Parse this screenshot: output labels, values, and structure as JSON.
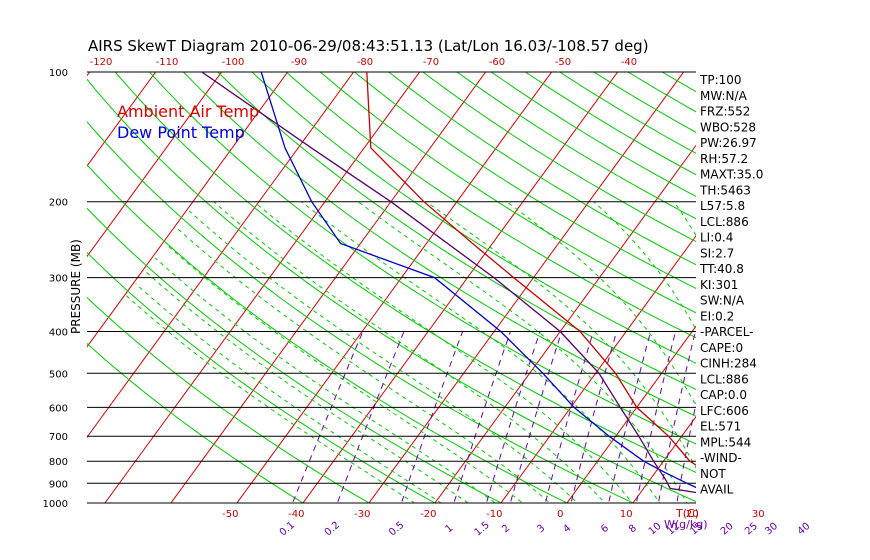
{
  "chart_data": {
    "type": "line",
    "title": "AIRS SkewT Diagram 2010-06-29/08:43:51.13 (Lat/Lon 16.03/-108.57 deg)",
    "ylabel": "PRESSURE (MB)",
    "xlabel": "T(C)",
    "mixing_ratio_label": "W(g/kg)",
    "pressure_ticks": [
      1000,
      900,
      800,
      700,
      600,
      500,
      400,
      300,
      200,
      100
    ],
    "pressure_tick_labels": [
      "1000",
      "900",
      "800",
      "700",
      "600",
      "500",
      "400",
      "300",
      "200",
      "100"
    ],
    "bottom_temp_ticks": [
      -50,
      -40,
      -30,
      -20,
      -10,
      0,
      10,
      20,
      30
    ],
    "bottom_temp_labels": [
      "-50",
      "-40",
      "-30",
      "-20",
      "-10",
      "0",
      "10",
      "20",
      "30"
    ],
    "top_temp_ticks": [
      -120,
      -110,
      -100,
      -90,
      -80,
      -70,
      -60,
      -50,
      -40
    ],
    "top_temp_labels": [
      "-120",
      "-110",
      "-100",
      "-90",
      "-80",
      "-70",
      "-60",
      "-50",
      "-40"
    ],
    "mixing_ratio_labels": [
      "0.1",
      "0.2",
      "0.5",
      "1",
      "1.5",
      "2",
      "3",
      "4",
      "6",
      "8",
      "10",
      "12",
      "15",
      "20",
      "25",
      "30",
      "40"
    ],
    "mixing_ratio_values": [
      0.1,
      0.2,
      0.5,
      1,
      1.5,
      2,
      3,
      4,
      6,
      8,
      10,
      12,
      15,
      20,
      25,
      30,
      40
    ],
    "legend": [
      {
        "label": "Ambient Air Temp",
        "color": "#dd0000"
      },
      {
        "label": "Dew Point Temp",
        "color": "#0000dd"
      }
    ],
    "series": [
      {
        "name": "Ambient Air Temp",
        "color": "#cc0000",
        "points": [
          {
            "p": 1000,
            "t": 29.5
          },
          {
            "p": 950,
            "t": 26.0
          },
          {
            "p": 900,
            "t": 21.5
          },
          {
            "p": 850,
            "t": 18.0
          },
          {
            "p": 800,
            "t": 14.0
          },
          {
            "p": 700,
            "t": 8.0
          },
          {
            "p": 600,
            "t": 0.0
          },
          {
            "p": 500,
            "t": -7.0
          },
          {
            "p": 400,
            "t": -17.0
          },
          {
            "p": 300,
            "t": -33.0
          },
          {
            "p": 250,
            "t": -43.0
          },
          {
            "p": 200,
            "t": -55.0
          },
          {
            "p": 150,
            "t": -69.0
          },
          {
            "p": 100,
            "t": -78.0
          }
        ]
      },
      {
        "name": "Dew Point Temp",
        "color": "#0000cc",
        "points": [
          {
            "p": 1000,
            "t": 22.0
          },
          {
            "p": 950,
            "t": 20.5
          },
          {
            "p": 900,
            "t": 16.0
          },
          {
            "p": 850,
            "t": 11.5
          },
          {
            "p": 800,
            "t": 7.0
          },
          {
            "p": 700,
            "t": -1.0
          },
          {
            "p": 600,
            "t": -9.5
          },
          {
            "p": 500,
            "t": -18.0
          },
          {
            "p": 400,
            "t": -29.0
          },
          {
            "p": 300,
            "t": -45.0
          },
          {
            "p": 250,
            "t": -63.0
          },
          {
            "p": 200,
            "t": -72.0
          },
          {
            "p": 150,
            "t": -82.0
          },
          {
            "p": 100,
            "t": -94.0
          }
        ]
      },
      {
        "name": "",
        "color": "#55006a",
        "points": [
          {
            "p": 1000,
            "t": 29.5
          },
          {
            "p": 925,
            "t": 14.0
          },
          {
            "p": 886,
            "t": 12.5
          },
          {
            "p": 800,
            "t": 8.5
          },
          {
            "p": 700,
            "t": 3.5
          },
          {
            "p": 600,
            "t": -2.5
          },
          {
            "p": 500,
            "t": -9.5
          },
          {
            "p": 400,
            "t": -20.0
          },
          {
            "p": 300,
            "t": -36.0
          },
          {
            "p": 200,
            "t": -60.0
          },
          {
            "p": 150,
            "t": -78.0
          },
          {
            "p": 100,
            "t": -103.0
          }
        ]
      }
    ],
    "ylim": [
      1000,
      100
    ],
    "xlim": [
      -52,
      38
    ]
  },
  "indices": [
    "TP:100",
    "MW:N/A",
    "FRZ:552",
    "WBO:528",
    "PW:26.97",
    "RH:57.2",
    "MAXT:35.0",
    "TH:5463",
    "L57:5.8",
    "LCL:886",
    "LI:0.4",
    "SI:2.7",
    "TT:40.8",
    "KI:301",
    "SW:N/A",
    "EI:0.2",
    "-PARCEL-",
    "CAPE:0",
    "CINH:284",
    "LCL:886",
    "CAP:0.0",
    "LFC:606",
    "EL:571",
    "MPL:544",
    "-WIND-",
    "NOT",
    "AVAIL"
  ],
  "colors": {
    "isotherm": "#dd0000",
    "dry_adiabat": "#00cc00",
    "moist_adiabat": "#00cc00",
    "mixing_ratio": "#6a00aa",
    "temperature": "#cc0000",
    "dewpoint": "#0000cc",
    "parcel": "#55006a",
    "bottom_labels": "#cc0000",
    "top_labels": "#cc0000"
  }
}
